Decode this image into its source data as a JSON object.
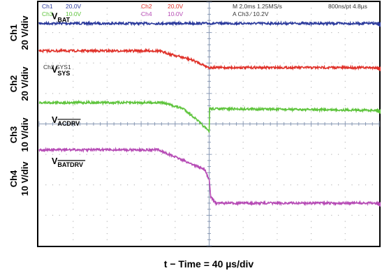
{
  "chart_data": {
    "type": "line",
    "title": "",
    "xlabel": "t − Time = 40 µs/div",
    "xlim": [
      -200,
      200
    ],
    "ylim": [
      -4,
      4
    ],
    "grid": true,
    "channel_labels": [
      {
        "ch": "Ch1",
        "scale": "20 V/div"
      },
      {
        "ch": "Ch2",
        "scale": "20 V/div"
      },
      {
        "ch": "Ch3",
        "scale": "10 V/div"
      },
      {
        "ch": "Ch4",
        "scale": "10 V/div"
      }
    ],
    "header": {
      "ch1_name": "Ch1",
      "ch1_scale": "20.0V",
      "ch2_name": "Ch2",
      "ch2_scale": "20.0V",
      "ch3_name": "Ch3",
      "ch3_scale": "10.0V",
      "ch4_name": "Ch4",
      "ch4_scale": "10.0V",
      "timebase": "M 2.0ms 1.25MS/s",
      "record": "800ns/pt 4.8µs",
      "trigger": "A  Ch3  ∕  10.2V"
    },
    "trigger_label": "Ch2 SYS1",
    "series": [
      {
        "name": "V",
        "sub": "BAT",
        "overline": false,
        "color": "#2b3a9c",
        "label_div": 3.55,
        "x": [
          -200,
          200
        ],
        "y": [
          3.3,
          3.3
        ]
      },
      {
        "name": "V",
        "sub": "SYS",
        "overline": false,
        "color": "#e0322a",
        "label_div": 1.8,
        "x": [
          -200,
          -60,
          -20,
          0,
          200
        ],
        "y": [
          2.4,
          2.4,
          2.1,
          1.85,
          1.85
        ]
      },
      {
        "name": "V",
        "sub": "ACDRV",
        "overline": true,
        "color": "#5ec43c",
        "label_div": 0.15,
        "x": [
          -200,
          -55,
          -30,
          -15,
          0,
          0.5,
          200
        ],
        "y": [
          0.7,
          0.7,
          0.5,
          0.15,
          -0.25,
          0.5,
          0.45
        ]
      },
      {
        "name": "V",
        "sub": "BATDRV",
        "overline": true,
        "color": "#b64bb5",
        "label_div": -1.2,
        "x": [
          -200,
          -60,
          -30,
          -5,
          0,
          2,
          8,
          200
        ],
        "y": [
          -0.85,
          -0.85,
          -1.2,
          -1.5,
          -1.85,
          -2.4,
          -2.6,
          -2.6
        ]
      }
    ]
  }
}
